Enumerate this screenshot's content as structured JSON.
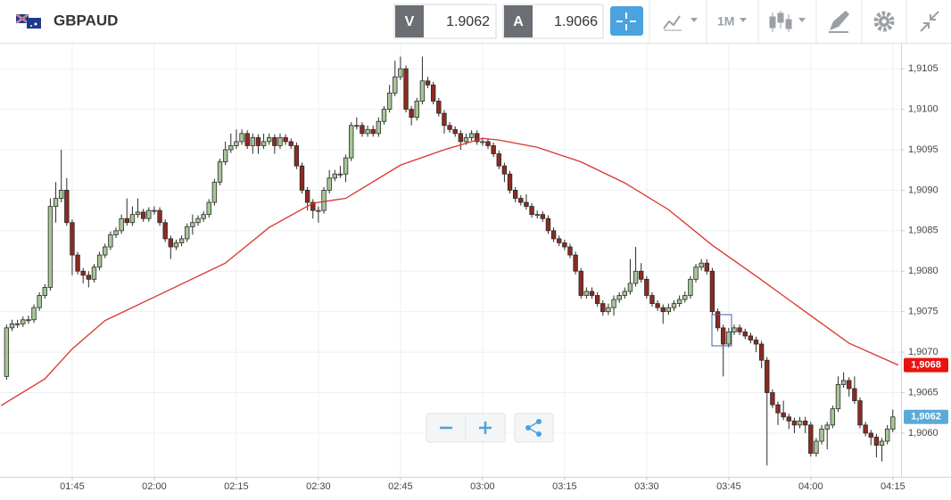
{
  "header": {
    "symbol": "GBPAUD",
    "bid_label": "V",
    "bid": "1.9062",
    "ask_label": "A",
    "ask": "1.9066",
    "timeframe": "1M"
  },
  "chart_data": {
    "type": "candlestick",
    "x": [
      93,
      94,
      95,
      96,
      97,
      98,
      99,
      100,
      101,
      102,
      103,
      104,
      105,
      106,
      107,
      108,
      109,
      110,
      111,
      112,
      113,
      114,
      115,
      116,
      117,
      118,
      119,
      120,
      121,
      122,
      123,
      124,
      125,
      126,
      127,
      128,
      129,
      130,
      131,
      132,
      133,
      134,
      135,
      136,
      137,
      138,
      139,
      140,
      141,
      142,
      143,
      144,
      145,
      146,
      147,
      148,
      149,
      150,
      151,
      152,
      153,
      154,
      155,
      156,
      157,
      158,
      159,
      160,
      161,
      162,
      163,
      164,
      165,
      166,
      167,
      168,
      169,
      170,
      171,
      172,
      173,
      174,
      175,
      176,
      177,
      178,
      179,
      180,
      181,
      182,
      183,
      184,
      185,
      186,
      187,
      188,
      189,
      190,
      191,
      192,
      193,
      194,
      195,
      196,
      197,
      198,
      199,
      200,
      201,
      202,
      203,
      204,
      205,
      206,
      207,
      208,
      209,
      210,
      211,
      212,
      213,
      214,
      215,
      216,
      217,
      218,
      219,
      220,
      221,
      222,
      223,
      224,
      225,
      226,
      227,
      228,
      229,
      230,
      231,
      232,
      233,
      234,
      235,
      236,
      237,
      238,
      239,
      240,
      241,
      242,
      243,
      244,
      245,
      246,
      247,
      248,
      249,
      250,
      251,
      252,
      253,
      254,
      255
    ],
    "open": [
      1.9067,
      1.9073,
      1.90735,
      1.90735,
      1.9074,
      1.9074,
      1.90755,
      1.9077,
      1.9078,
      1.9088,
      1.9089,
      1.909,
      1.9086,
      1.9082,
      1.908,
      1.90795,
      1.9079,
      1.90805,
      1.9082,
      1.9083,
      1.90845,
      1.9085,
      1.90865,
      1.9086,
      1.9087,
      1.90873,
      1.90865,
      1.90875,
      1.90875,
      1.9086,
      1.9084,
      1.9083,
      1.90835,
      1.9084,
      1.90855,
      1.9086,
      1.90865,
      1.9087,
      1.90885,
      1.9091,
      1.90935,
      1.9095,
      1.90955,
      1.9096,
      1.9097,
      1.90955,
      1.90965,
      1.90955,
      1.9096,
      1.90965,
      1.90955,
      1.90965,
      1.9096,
      1.90955,
      1.9093,
      1.909,
      1.90885,
      1.90875,
      1.90875,
      1.909,
      1.90915,
      1.9092,
      1.9092,
      1.9094,
      1.9098,
      1.9098,
      1.9097,
      1.90975,
      1.9097,
      1.90985,
      1.91,
      1.9102,
      1.9104,
      1.9105,
      1.91,
      1.9099,
      1.9101,
      1.91035,
      1.9103,
      1.9101,
      1.90995,
      1.9098,
      1.90975,
      1.9097,
      1.9096,
      1.90965,
      1.9097,
      1.9096,
      1.9096,
      1.90955,
      1.90945,
      1.9093,
      1.9092,
      1.909,
      1.9089,
      1.90885,
      1.9088,
      1.9087,
      1.9087,
      1.90865,
      1.9085,
      1.9084,
      1.90835,
      1.9083,
      1.9082,
      1.908,
      1.9077,
      1.90775,
      1.9077,
      1.9076,
      1.9075,
      1.90755,
      1.90765,
      1.9077,
      1.90775,
      1.90785,
      1.908,
      1.9079,
      1.9077,
      1.9076,
      1.90755,
      1.9075,
      1.90755,
      1.9076,
      1.90765,
      1.9077,
      1.9079,
      1.90805,
      1.9081,
      1.908,
      1.9075,
      1.9073,
      1.9071,
      1.90725,
      1.9073,
      1.90725,
      1.9072,
      1.90715,
      1.9071,
      1.9069,
      1.9065,
      1.90635,
      1.90625,
      1.9062,
      1.90615,
      1.9061,
      1.90615,
      1.9061,
      1.90575,
      1.9059,
      1.90605,
      1.9061,
      1.9063,
      1.9066,
      1.90665,
      1.90655,
      1.9064,
      1.9061,
      1.906,
      1.90595,
      1.90585,
      1.9059,
      1.90605
    ],
    "high": [
      1.90734,
      1.9074,
      1.9074,
      1.90744,
      1.90745,
      1.90759,
      1.90774,
      1.90784,
      1.9089,
      1.9091,
      1.9095,
      1.90915,
      1.90864,
      1.90824,
      1.90804,
      1.908,
      1.90809,
      1.90824,
      1.90834,
      1.90849,
      1.90854,
      1.9087,
      1.9089,
      1.9088,
      1.9089,
      1.90877,
      1.90879,
      1.9088,
      1.90879,
      1.90864,
      1.90844,
      1.90839,
      1.90844,
      1.90859,
      1.9087,
      1.90869,
      1.90874,
      1.90889,
      1.90914,
      1.90939,
      1.9096,
      1.9097,
      1.90975,
      1.90975,
      1.90974,
      1.9097,
      1.90969,
      1.9097,
      1.9097,
      1.90969,
      1.9097,
      1.90969,
      1.90964,
      1.90959,
      1.90934,
      1.90904,
      1.90889,
      1.9088,
      1.90904,
      1.90925,
      1.90925,
      1.9093,
      1.90944,
      1.90984,
      1.9099,
      1.90984,
      1.9098,
      1.9098,
      1.9099,
      1.91004,
      1.9103,
      1.9106,
      1.91065,
      1.91054,
      1.91004,
      1.91014,
      1.91065,
      1.9104,
      1.91034,
      1.91014,
      1.90999,
      1.90984,
      1.90979,
      1.90974,
      1.9097,
      1.90974,
      1.90974,
      1.90965,
      1.90964,
      1.90959,
      1.90949,
      1.90934,
      1.90924,
      1.90904,
      1.90894,
      1.90895,
      1.90884,
      1.90875,
      1.90874,
      1.90869,
      1.90854,
      1.90844,
      1.90839,
      1.90834,
      1.90824,
      1.90804,
      1.9078,
      1.9078,
      1.90774,
      1.90764,
      1.9076,
      1.9077,
      1.90774,
      1.9078,
      1.90815,
      1.9083,
      1.9081,
      1.90794,
      1.90774,
      1.90764,
      1.90759,
      1.9076,
      1.90764,
      1.9077,
      1.90775,
      1.90794,
      1.90809,
      1.90815,
      1.90815,
      1.90804,
      1.90754,
      1.90734,
      1.9073,
      1.90734,
      1.90734,
      1.90729,
      1.90724,
      1.90719,
      1.90714,
      1.90694,
      1.90654,
      1.90639,
      1.9064,
      1.90624,
      1.90619,
      1.9062,
      1.9062,
      1.90614,
      1.90594,
      1.9061,
      1.90614,
      1.90634,
      1.9067,
      1.90675,
      1.90669,
      1.9067,
      1.90644,
      1.90614,
      1.90604,
      1.90599,
      1.90594,
      1.9061,
      1.90629
    ],
    "low": [
      1.90666,
      1.90726,
      1.9073,
      1.90731,
      1.90735,
      1.90736,
      1.90751,
      1.90766,
      1.90776,
      1.9086,
      1.90885,
      1.90856,
      1.90795,
      1.90796,
      1.90785,
      1.9078,
      1.90786,
      1.90801,
      1.90816,
      1.90826,
      1.90841,
      1.90846,
      1.90856,
      1.90856,
      1.90866,
      1.90861,
      1.90861,
      1.9087,
      1.90856,
      1.90836,
      1.90815,
      1.90826,
      1.90831,
      1.90836,
      1.90845,
      1.90856,
      1.90861,
      1.90866,
      1.90881,
      1.90906,
      1.90931,
      1.90946,
      1.90951,
      1.90956,
      1.90951,
      1.90945,
      1.90945,
      1.90951,
      1.90956,
      1.90945,
      1.90951,
      1.90956,
      1.90951,
      1.90926,
      1.90896,
      1.90875,
      1.90865,
      1.9086,
      1.90871,
      1.90896,
      1.90911,
      1.90915,
      1.9091,
      1.90936,
      1.90975,
      1.90966,
      1.90966,
      1.90966,
      1.90966,
      1.90981,
      1.90996,
      1.91016,
      1.91036,
      1.90996,
      1.9098,
      1.90986,
      1.91006,
      1.91026,
      1.91006,
      1.90991,
      1.9097,
      1.90971,
      1.90966,
      1.9095,
      1.90956,
      1.90961,
      1.90956,
      1.90955,
      1.90951,
      1.90941,
      1.90926,
      1.9091,
      1.90896,
      1.90885,
      1.90881,
      1.90876,
      1.90866,
      1.90865,
      1.90861,
      1.90846,
      1.90836,
      1.90831,
      1.90826,
      1.90816,
      1.90796,
      1.90766,
      1.90766,
      1.90766,
      1.90756,
      1.90745,
      1.90746,
      1.90745,
      1.90761,
      1.90766,
      1.90771,
      1.90781,
      1.90786,
      1.90766,
      1.90756,
      1.90751,
      1.90735,
      1.90746,
      1.90751,
      1.90756,
      1.90761,
      1.90766,
      1.90786,
      1.90801,
      1.90796,
      1.90746,
      1.90726,
      1.9067,
      1.90706,
      1.90721,
      1.90721,
      1.90716,
      1.90711,
      1.907,
      1.9068,
      1.9056,
      1.90631,
      1.9061,
      1.90616,
      1.90605,
      1.906,
      1.90606,
      1.906,
      1.90571,
      1.90571,
      1.90586,
      1.9058,
      1.90606,
      1.90626,
      1.90656,
      1.90645,
      1.90636,
      1.90606,
      1.90596,
      1.90585,
      1.9057,
      1.90565,
      1.90586,
      1.90601
    ],
    "close": [
      1.9073,
      1.90735,
      1.90735,
      1.9074,
      1.9074,
      1.90755,
      1.9077,
      1.9078,
      1.9088,
      1.9089,
      1.909,
      1.9086,
      1.9082,
      1.908,
      1.90795,
      1.9079,
      1.90805,
      1.9082,
      1.9083,
      1.90845,
      1.9085,
      1.90865,
      1.9086,
      1.9087,
      1.90873,
      1.90865,
      1.90875,
      1.90875,
      1.9086,
      1.9084,
      1.9083,
      1.90835,
      1.9084,
      1.90855,
      1.9086,
      1.90865,
      1.9087,
      1.90885,
      1.9091,
      1.90935,
      1.9095,
      1.90955,
      1.9096,
      1.9097,
      1.90955,
      1.90965,
      1.90955,
      1.9096,
      1.90965,
      1.90955,
      1.90965,
      1.9096,
      1.90955,
      1.9093,
      1.909,
      1.90885,
      1.90875,
      1.90875,
      1.909,
      1.90915,
      1.9092,
      1.9092,
      1.9094,
      1.9098,
      1.9098,
      1.9097,
      1.90975,
      1.9097,
      1.90985,
      1.91,
      1.9102,
      1.9104,
      1.9105,
      1.91,
      1.9099,
      1.9101,
      1.91035,
      1.9103,
      1.9101,
      1.90995,
      1.9098,
      1.90975,
      1.9097,
      1.9096,
      1.90965,
      1.9097,
      1.9096,
      1.9096,
      1.90955,
      1.90945,
      1.9093,
      1.9092,
      1.909,
      1.9089,
      1.90885,
      1.9088,
      1.9087,
      1.9087,
      1.90865,
      1.9085,
      1.9084,
      1.90835,
      1.9083,
      1.9082,
      1.908,
      1.9077,
      1.90775,
      1.9077,
      1.9076,
      1.9075,
      1.90755,
      1.90765,
      1.9077,
      1.90775,
      1.90785,
      1.908,
      1.9079,
      1.9077,
      1.9076,
      1.90755,
      1.9075,
      1.90755,
      1.9076,
      1.90765,
      1.9077,
      1.9079,
      1.90805,
      1.9081,
      1.908,
      1.9075,
      1.9073,
      1.9071,
      1.90725,
      1.9073,
      1.90725,
      1.9072,
      1.90715,
      1.9071,
      1.9069,
      1.9065,
      1.90635,
      1.90625,
      1.9062,
      1.90615,
      1.9061,
      1.90615,
      1.9061,
      1.90575,
      1.9059,
      1.90605,
      1.9061,
      1.9063,
      1.9066,
      1.90665,
      1.90655,
      1.9064,
      1.9061,
      1.906,
      1.90595,
      1.90585,
      1.9059,
      1.90605,
      1.9062
    ],
    "up_color": "#a6c797",
    "down_color": "#8c2b20",
    "ma": {
      "color": "#d9342b",
      "x": [
        92,
        100,
        105,
        111,
        120,
        133,
        141,
        149,
        155,
        165,
        173,
        180,
        183,
        190,
        198,
        206,
        214,
        222,
        230,
        239,
        247,
        256
      ],
      "values": [
        1.90634,
        1.90667,
        1.90704,
        1.90739,
        1.90768,
        1.9081,
        1.90854,
        1.90884,
        1.9089,
        1.90931,
        1.9095,
        1.90964,
        1.90962,
        1.90953,
        1.90935,
        1.90909,
        1.90876,
        1.90832,
        1.90794,
        1.9075,
        1.90711,
        1.90684
      ]
    },
    "price_labels": [
      {
        "label": "1,9068",
        "value": 1.90684,
        "color": "#e8130f"
      },
      {
        "label": "1,9062",
        "value": 1.9062,
        "color": "#5aaad8"
      }
    ],
    "xlim": [
      91.8,
      256.5
    ],
    "xticks": [
      {
        "value": 105,
        "label": "01:45"
      },
      {
        "value": 120,
        "label": "02:00"
      },
      {
        "value": 135,
        "label": "02:15"
      },
      {
        "value": 150,
        "label": "02:30"
      },
      {
        "value": 165,
        "label": "02:45"
      },
      {
        "value": 180,
        "label": "03:00"
      },
      {
        "value": 195,
        "label": "03:15"
      },
      {
        "value": 210,
        "label": "03:30"
      },
      {
        "value": 225,
        "label": "03:45"
      },
      {
        "value": 240,
        "label": "04:00"
      },
      {
        "value": 255,
        "label": "04:15"
      }
    ],
    "ylim": [
      1.90546,
      1.91081
    ],
    "yticks": [
      {
        "value": 1.906,
        "label": "1,9060"
      },
      {
        "value": 1.9065,
        "label": "1,9065"
      },
      {
        "value": 1.907,
        "label": "1,9070"
      },
      {
        "value": 1.9075,
        "label": "1,9075"
      },
      {
        "value": 1.908,
        "label": "1,9080"
      },
      {
        "value": 1.9085,
        "label": "1,9085"
      },
      {
        "value": 1.909,
        "label": "1,9090"
      },
      {
        "value": 1.9095,
        "label": "1,9095"
      },
      {
        "value": 1.91,
        "label": "1,9100"
      },
      {
        "value": 1.9105,
        "label": "1,9105"
      }
    ],
    "grid": true
  }
}
